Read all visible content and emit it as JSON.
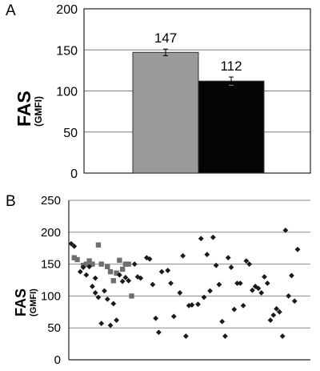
{
  "chart_data": [
    {
      "panel": "A",
      "type": "bar",
      "ylabel": "FAS",
      "ylabel_unit": "(GMFI)",
      "ylim": [
        0,
        200
      ],
      "yticks": [
        0,
        50,
        100,
        150,
        200
      ],
      "grid": true,
      "categories": [
        "",
        ""
      ],
      "values": [
        147,
        112
      ],
      "errors": [
        4,
        5
      ],
      "data_labels": [
        "147",
        "112"
      ],
      "colors": [
        "#9a9a9a",
        "#050505"
      ]
    },
    {
      "panel": "B",
      "type": "scatter",
      "ylabel": "FAS",
      "ylabel_unit": "(GMFI)",
      "ylim": [
        0,
        250
      ],
      "yticks": [
        0,
        50,
        100,
        150,
        200,
        250
      ],
      "grid": true,
      "series": [
        {
          "marker": "square",
          "color": "#6e6e6e",
          "points": [
            [
              1,
              160
            ],
            [
              2,
              157
            ],
            [
              4,
              148
            ],
            [
              5,
              150
            ],
            [
              6,
              155
            ],
            [
              7,
              150
            ],
            [
              9,
              180
            ],
            [
              10,
              150
            ],
            [
              12,
              146
            ],
            [
              13,
              138
            ],
            [
              14,
              124
            ],
            [
              15,
              136
            ],
            [
              16,
              156
            ],
            [
              17,
              142
            ],
            [
              18,
              150
            ],
            [
              19,
              150
            ],
            [
              20,
              100
            ]
          ]
        },
        {
          "marker": "diamond",
          "color": "#1a1a1a",
          "points": [
            [
              0,
              182
            ],
            [
              1,
              178
            ],
            [
              3,
              138
            ],
            [
              4,
              145
            ],
            [
              5,
              133
            ],
            [
              6,
              146
            ],
            [
              7,
              115
            ],
            [
              8,
              105
            ],
            [
              8,
              128
            ],
            [
              9,
              98
            ],
            [
              10,
              57
            ],
            [
              11,
              108
            ],
            [
              12,
              95
            ],
            [
              13,
              54
            ],
            [
              14,
              88
            ],
            [
              15,
              62
            ],
            [
              16,
              133
            ],
            [
              17,
              123
            ],
            [
              18,
              129
            ],
            [
              19,
              124
            ],
            [
              21,
              150
            ],
            [
              22,
              130
            ],
            [
              23,
              128
            ],
            [
              25,
              160
            ],
            [
              26,
              158
            ],
            [
              27,
              118
            ],
            [
              28,
              65
            ],
            [
              29,
              43
            ],
            [
              30,
              138
            ],
            [
              32,
              140
            ],
            [
              33,
              120
            ],
            [
              34,
              68
            ],
            [
              36,
              105
            ],
            [
              37,
              163
            ],
            [
              38,
              37
            ],
            [
              39,
              85
            ],
            [
              40,
              86
            ],
            [
              42,
              87
            ],
            [
              43,
              190
            ],
            [
              44,
              98
            ],
            [
              45,
              165
            ],
            [
              46,
              108
            ],
            [
              47,
              192
            ],
            [
              48,
              148
            ],
            [
              49,
              118
            ],
            [
              50,
              60
            ],
            [
              51,
              37
            ],
            [
              52,
              160
            ],
            [
              53,
              145
            ],
            [
              54,
              79
            ],
            [
              55,
              120
            ],
            [
              56,
              120
            ],
            [
              57,
              85
            ],
            [
              58,
              155
            ],
            [
              59,
              150
            ],
            [
              60,
              109
            ],
            [
              61,
              115
            ],
            [
              62,
              112
            ],
            [
              63,
              105
            ],
            [
              64,
              130
            ],
            [
              65,
              120
            ],
            [
              66,
              62
            ],
            [
              67,
              70
            ],
            [
              68,
              80
            ],
            [
              69,
              75
            ],
            [
              70,
              37
            ],
            [
              71,
              203
            ],
            [
              72,
              100
            ],
            [
              73,
              132
            ],
            [
              74,
              92
            ],
            [
              75,
              173
            ]
          ]
        }
      ]
    }
  ]
}
